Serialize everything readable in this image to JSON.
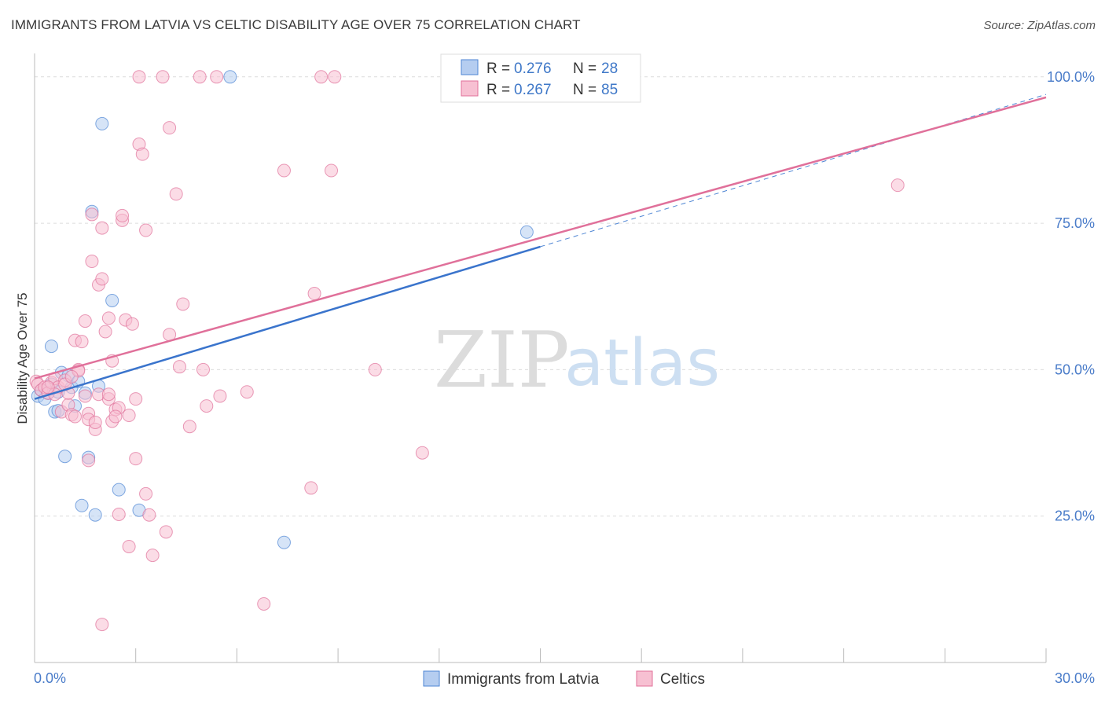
{
  "title": "IMMIGRANTS FROM LATVIA VS CELTIC DISABILITY AGE OVER 75 CORRELATION CHART",
  "source": "Source: ZipAtlas.com",
  "watermark": {
    "zip": "ZIP",
    "atlas": "atlas"
  },
  "chart_data": {
    "type": "scatter",
    "xlabel": "",
    "ylabel": "Disability Age Over 75",
    "xlim": [
      0,
      30
    ],
    "ylim": [
      0,
      104
    ],
    "x_tick_labels": [
      "0.0%",
      "30.0%"
    ],
    "y_ticks": [
      25,
      50,
      75,
      100
    ],
    "y_tick_labels": [
      "25.0%",
      "50.0%",
      "75.0%",
      "100.0%"
    ],
    "grid": true,
    "legend_position": "top-center",
    "legend": [
      {
        "r_label": "R =",
        "r_value": "0.276",
        "n_label": "N =",
        "n_value": "28"
      },
      {
        "r_label": "R =",
        "r_value": "0.267",
        "n_label": "N =",
        "n_value": "85"
      }
    ],
    "series": [
      {
        "name": "Immigrants from Latvia",
        "color": "#4f86d4",
        "fill": "#b5cdf0",
        "trend": {
          "x0": 0,
          "y0": 45.0,
          "x1": 15,
          "y1": 71.0,
          "dash_to_x": 30,
          "dash_to_y": 97.0
        },
        "points": [
          [
            0.1,
            45.5
          ],
          [
            0.2,
            46.5
          ],
          [
            0.3,
            45.0
          ],
          [
            0.4,
            46.0
          ],
          [
            0.5,
            47.5
          ],
          [
            0.5,
            54.0
          ],
          [
            0.6,
            42.8
          ],
          [
            0.7,
            43.0
          ],
          [
            0.7,
            46.2
          ],
          [
            0.8,
            49.5
          ],
          [
            0.9,
            35.2
          ],
          [
            1.0,
            49.0
          ],
          [
            1.1,
            47.0
          ],
          [
            1.2,
            43.8
          ],
          [
            1.3,
            48.0
          ],
          [
            1.4,
            26.8
          ],
          [
            1.5,
            46.0
          ],
          [
            1.6,
            35.0
          ],
          [
            1.7,
            77.0
          ],
          [
            1.8,
            25.2
          ],
          [
            2.0,
            92.0
          ],
          [
            2.3,
            61.8
          ],
          [
            2.5,
            29.5
          ],
          [
            3.1,
            26.0
          ],
          [
            5.8,
            100.0
          ],
          [
            7.4,
            20.5
          ],
          [
            14.6,
            73.5
          ],
          [
            1.9,
            47.2
          ]
        ]
      },
      {
        "name": "Celtics",
        "color": "#e0709a",
        "fill": "#f7c0d2",
        "trend": {
          "x0": 0,
          "y0": 48.5,
          "x1": 30,
          "y1": 96.5
        },
        "points": [
          [
            0.05,
            48.0
          ],
          [
            0.1,
            47.5
          ],
          [
            0.2,
            46.5
          ],
          [
            0.3,
            47.0
          ],
          [
            0.4,
            46.0
          ],
          [
            0.5,
            47.8
          ],
          [
            0.6,
            48.5
          ],
          [
            0.7,
            47.0
          ],
          [
            0.8,
            42.8
          ],
          [
            0.9,
            48.2
          ],
          [
            1.0,
            44.0
          ],
          [
            1.0,
            46.0
          ],
          [
            1.1,
            42.3
          ],
          [
            1.2,
            55.0
          ],
          [
            1.2,
            42.0
          ],
          [
            1.3,
            50.0
          ],
          [
            1.4,
            54.8
          ],
          [
            1.5,
            58.3
          ],
          [
            1.6,
            42.5
          ],
          [
            1.6,
            41.5
          ],
          [
            1.6,
            34.5
          ],
          [
            1.7,
            68.5
          ],
          [
            1.7,
            76.5
          ],
          [
            1.8,
            39.8
          ],
          [
            1.9,
            64.5
          ],
          [
            1.9,
            45.8
          ],
          [
            2.0,
            65.5
          ],
          [
            2.0,
            74.2
          ],
          [
            2.1,
            56.5
          ],
          [
            2.2,
            58.8
          ],
          [
            2.2,
            45.0
          ],
          [
            2.3,
            51.5
          ],
          [
            2.3,
            41.2
          ],
          [
            2.4,
            43.2
          ],
          [
            2.5,
            43.5
          ],
          [
            2.5,
            25.3
          ],
          [
            2.6,
            75.5
          ],
          [
            2.6,
            76.3
          ],
          [
            2.7,
            58.5
          ],
          [
            2.8,
            42.2
          ],
          [
            2.8,
            19.8
          ],
          [
            2.9,
            57.8
          ],
          [
            3.0,
            34.8
          ],
          [
            3.1,
            100.0
          ],
          [
            3.1,
            88.5
          ],
          [
            3.2,
            86.8
          ],
          [
            3.3,
            73.8
          ],
          [
            3.3,
            28.8
          ],
          [
            3.4,
            25.2
          ],
          [
            3.5,
            18.3
          ],
          [
            3.8,
            100.0
          ],
          [
            3.9,
            22.3
          ],
          [
            4.0,
            91.3
          ],
          [
            4.0,
            56.0
          ],
          [
            4.2,
            80.0
          ],
          [
            4.3,
            50.5
          ],
          [
            4.4,
            61.2
          ],
          [
            4.6,
            40.3
          ],
          [
            4.9,
            100.0
          ],
          [
            5.0,
            50.0
          ],
          [
            5.1,
            43.8
          ],
          [
            5.4,
            100.0
          ],
          [
            5.5,
            45.5
          ],
          [
            6.3,
            46.2
          ],
          [
            6.8,
            10.0
          ],
          [
            7.4,
            84.0
          ],
          [
            8.2,
            29.8
          ],
          [
            8.3,
            63.0
          ],
          [
            8.5,
            100.0
          ],
          [
            8.8,
            84.0
          ],
          [
            8.9,
            100.0
          ],
          [
            10.1,
            50.0
          ],
          [
            11.5,
            35.8
          ],
          [
            25.6,
            81.5
          ],
          [
            2.0,
            6.5
          ],
          [
            0.6,
            45.8
          ],
          [
            0.9,
            47.5
          ],
          [
            1.5,
            45.5
          ],
          [
            1.3,
            49.8
          ],
          [
            2.2,
            45.8
          ],
          [
            0.4,
            47.0
          ],
          [
            1.8,
            41.0
          ],
          [
            2.4,
            42.0
          ],
          [
            3.0,
            45.0
          ],
          [
            1.1,
            48.8
          ]
        ]
      }
    ]
  }
}
